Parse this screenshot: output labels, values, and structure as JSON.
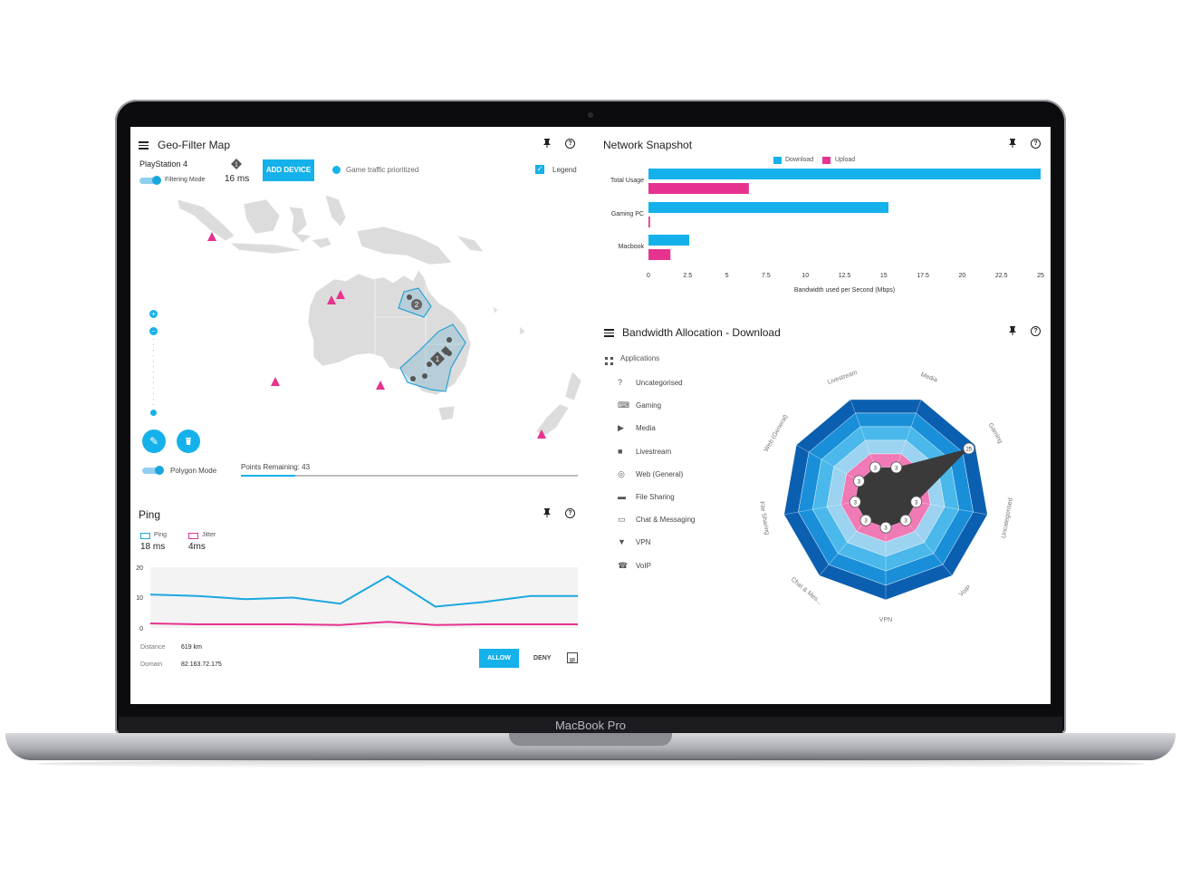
{
  "laptop": {
    "brand": "MacBook Pro"
  },
  "geo": {
    "title": "Geo-Filter Map",
    "device": "PlayStation 4",
    "latency": "16 ms",
    "latency_badge": "1",
    "filtering_mode": "Filtering Mode",
    "add_device": "ADD DEVICE",
    "game_traffic": "Game traffic prioritized",
    "legend": "Legend",
    "polygon_mode": "Polygon Mode",
    "points_remaining": "Points Remaining: 43",
    "points_fraction": 0.16,
    "cluster_labels": [
      "2",
      "1"
    ],
    "icons": [
      "menu-icon",
      "pin-icon",
      "help-icon",
      "edit-icon",
      "delete-icon",
      "zoom-in-icon",
      "zoom-out-icon"
    ]
  },
  "ping": {
    "title": "Ping",
    "ping_label": "Ping",
    "ping_value": "18 ms",
    "jitter_label": "Jitter",
    "jitter_value": "4ms",
    "yticks": [
      "20",
      "10",
      "0"
    ],
    "distance_label": "Distance",
    "distance_value": "619 km",
    "domain_label": "Domain",
    "domain_value": "82.163.72.175",
    "allow": "ALLOW",
    "deny": "DENY",
    "ping_series": [
      11,
      10.5,
      9.5,
      10,
      8,
      17,
      7,
      8.5,
      10.5,
      10.5
    ],
    "jitter_series": [
      1.5,
      1.2,
      1.2,
      1.2,
      1,
      2,
      1,
      1.2,
      1.2,
      1.2
    ],
    "colors": {
      "ping": "#1aa7df",
      "jitter": "#e6338f"
    }
  },
  "snapshot": {
    "title": "Network Snapshot",
    "legend_download": "Download",
    "legend_upload": "Upload",
    "xlabel": "Bandwidth used per Second (Mbps)",
    "xticks": [
      "0",
      "2.5",
      "5",
      "7.5",
      "10",
      "12.5",
      "15",
      "17.5",
      "20",
      "22.5",
      "25"
    ]
  },
  "chart_data": {
    "type": "bar",
    "orientation": "horizontal",
    "categories": [
      "Total Usage",
      "Gaming PC",
      "Macbook"
    ],
    "series": [
      {
        "name": "Download",
        "values": [
          25,
          15.3,
          2.6
        ],
        "color": "#15b1ea"
      },
      {
        "name": "Upload",
        "values": [
          6.4,
          0.1,
          1.4
        ],
        "color": "#e6338f"
      }
    ],
    "xlabel": "Bandwidth used per Second (Mbps)",
    "xlim": [
      0,
      25
    ]
  },
  "bandwidth": {
    "title": "Bandwidth Allocation - Download",
    "applications_label": "Applications",
    "apps": [
      {
        "label": "Uncategorised",
        "icon": "uncategorised-icon",
        "glyph": "?"
      },
      {
        "label": "Gaming",
        "icon": "gamepad-icon",
        "glyph": "⌨"
      },
      {
        "label": "Media",
        "icon": "media-icon",
        "glyph": "▶"
      },
      {
        "label": "Livestream",
        "icon": "camera-icon",
        "glyph": "■"
      },
      {
        "label": "Web (General)",
        "icon": "web-icon",
        "glyph": "◎"
      },
      {
        "label": "File Sharing",
        "icon": "folder-icon",
        "glyph": "▬"
      },
      {
        "label": "Chat & Messaging",
        "icon": "chat-icon",
        "glyph": "▭"
      },
      {
        "label": "VPN",
        "icon": "shield-icon",
        "glyph": "▼"
      },
      {
        "label": "VoIP",
        "icon": "phone-icon",
        "glyph": "☎"
      }
    ],
    "radar_axes": [
      "Media",
      "Gaming",
      "Uncategorised",
      "VoIP",
      "VPN",
      "Chat & Mes...",
      "File Sharing",
      "Web (General)",
      "Livestream"
    ],
    "radar_values": [
      3,
      25,
      3,
      3,
      3,
      3,
      3,
      3,
      3
    ]
  }
}
